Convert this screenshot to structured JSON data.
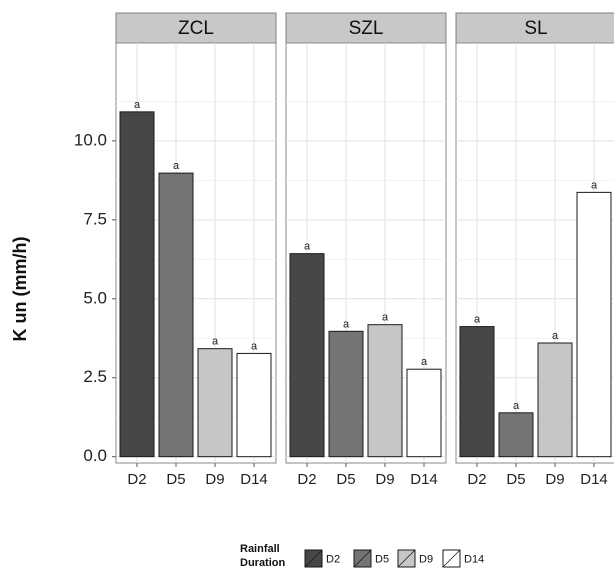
{
  "chart_data": {
    "type": "bar",
    "ylabel": "K un (mm/h)",
    "ylim": [
      -0.2,
      13.1
    ],
    "yticks": [
      "0.0",
      "2.5",
      "5.0",
      "7.5",
      "10.0"
    ],
    "categories": [
      "D2",
      "D5",
      "D9",
      "D14"
    ],
    "legend": {
      "title_lines": [
        "Rainfall",
        "Duration"
      ],
      "position": "bottom",
      "entries": [
        {
          "label": "D2",
          "color": "#474747"
        },
        {
          "label": "D5",
          "color": "#747474"
        },
        {
          "label": "D9",
          "color": "#c6c6c6"
        },
        {
          "label": "D14",
          "color": "#ffffff"
        }
      ]
    },
    "grid": true,
    "panels": [
      {
        "name": "ZCL",
        "values": [
          10.92,
          8.98,
          3.42,
          3.27
        ],
        "labels": [
          "a",
          "a",
          "a",
          "a"
        ]
      },
      {
        "name": "SZL",
        "values": [
          6.43,
          3.97,
          4.18,
          2.77
        ],
        "labels": [
          "a",
          "a",
          "a",
          "a"
        ]
      },
      {
        "name": "SL",
        "values": [
          4.12,
          1.39,
          3.6,
          8.37
        ],
        "labels": [
          "a",
          "a",
          "a",
          "a"
        ]
      }
    ]
  }
}
